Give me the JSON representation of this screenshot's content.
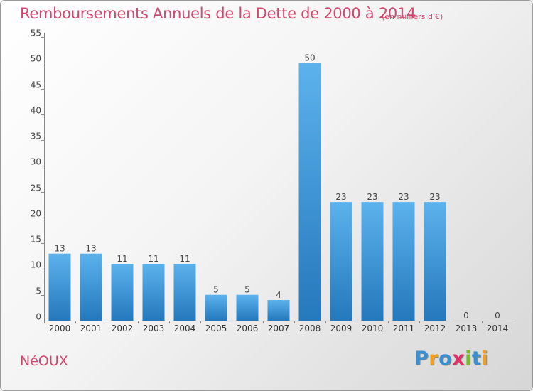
{
  "header": {
    "title": "Remboursements Annuels de la Dette de 2000 à 2014",
    "unit": "(en milliers d'€)"
  },
  "footer": {
    "commune": "NéOUX",
    "logo_letters": [
      {
        "ch": "P",
        "color": "#3a8fd0"
      },
      {
        "ch": "r",
        "color": "#f0a020"
      },
      {
        "ch": "o",
        "color": "#3a8fd0"
      },
      {
        "ch": "x",
        "color": "#e0306a"
      },
      {
        "ch": "i",
        "color": "#7ab830"
      },
      {
        "ch": "t",
        "color": "#3a8fd0"
      },
      {
        "ch": "i",
        "color": "#f0a020"
      }
    ]
  },
  "chart_data": {
    "type": "bar",
    "title": "Remboursements Annuels de la Dette de 2000 à 2014",
    "ylabel": "(en milliers d'€)",
    "categories": [
      "2000",
      "2001",
      "2002",
      "2003",
      "2004",
      "2005",
      "2006",
      "2007",
      "2008",
      "2009",
      "2010",
      "2011",
      "2012",
      "2013",
      "2014"
    ],
    "values": [
      13,
      13,
      11,
      11,
      11,
      5,
      5,
      4,
      50,
      23,
      23,
      23,
      23,
      0,
      0
    ],
    "ylim": [
      0,
      55
    ],
    "yticks": [
      0,
      5,
      10,
      15,
      20,
      25,
      30,
      35,
      40,
      45,
      50,
      55
    ],
    "grid": false,
    "bar_color": "#3f9be0"
  }
}
